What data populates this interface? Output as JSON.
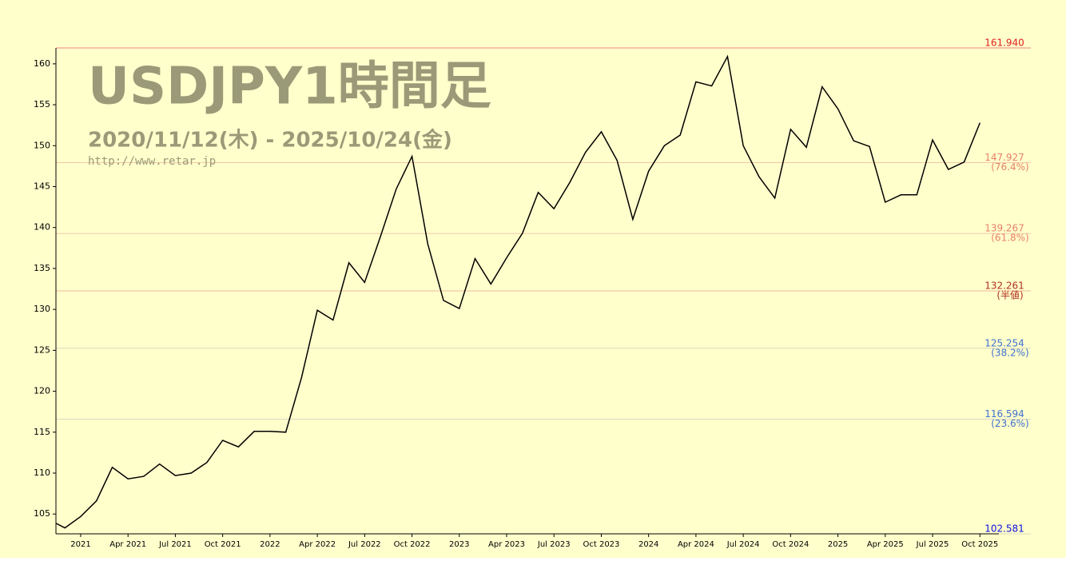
{
  "chart_data": {
    "type": "line",
    "title": "USDJPY1時間足",
    "subtitle": "2020/11/12(木) - 2025/10/24(金)",
    "source": "http://www.retar.jp",
    "color": "#000000",
    "background": "#ffffcc",
    "x": [
      "2020-11",
      "2020-12",
      "2021-01",
      "2021-02",
      "2021-03",
      "2021-04",
      "2021-05",
      "2021-06",
      "2021-07",
      "2021-08",
      "2021-09",
      "2021-10",
      "2021-11",
      "2021-12",
      "2022-01",
      "2022-02",
      "2022-03",
      "2022-04",
      "2022-05",
      "2022-06",
      "2022-07",
      "2022-08",
      "2022-09",
      "2022-10",
      "2022-11",
      "2022-12",
      "2023-01",
      "2023-02",
      "2023-03",
      "2023-04",
      "2023-05",
      "2023-06",
      "2023-07",
      "2023-08",
      "2023-09",
      "2023-10",
      "2023-11",
      "2023-12",
      "2024-01",
      "2024-02",
      "2024-03",
      "2024-04",
      "2024-05",
      "2024-06",
      "2024-07",
      "2024-08",
      "2024-09",
      "2024-10",
      "2024-11",
      "2024-12",
      "2025-01",
      "2025-02",
      "2025-03",
      "2025-04",
      "2025-05",
      "2025-06",
      "2025-07",
      "2025-08",
      "2025-09",
      "2025-10"
    ],
    "values": [
      104.3,
      103.3,
      104.7,
      106.6,
      110.7,
      109.3,
      109.6,
      111.1,
      109.7,
      110.0,
      111.3,
      114.0,
      113.2,
      115.1,
      115.1,
      115.0,
      121.7,
      129.9,
      128.7,
      135.7,
      133.3,
      138.9,
      144.7,
      148.7,
      138.0,
      131.1,
      130.1,
      136.2,
      133.1,
      136.3,
      139.3,
      144.3,
      142.3,
      145.5,
      149.2,
      151.7,
      148.2,
      141.0,
      146.9,
      150.0,
      151.3,
      157.8,
      157.3,
      160.9,
      150.0,
      146.2,
      143.6,
      152.0,
      149.8,
      157.2,
      154.5,
      150.6,
      149.9,
      143.1,
      144.0,
      144.0,
      150.7,
      147.1,
      148.0,
      152.8
    ],
    "xlim": [
      "2020-11",
      "2025-11"
    ],
    "xticks": [
      {
        "value": "2021-01",
        "label": "2021"
      },
      {
        "value": "2021-04",
        "label": "Apr 2021"
      },
      {
        "value": "2021-07",
        "label": "Jul 2021"
      },
      {
        "value": "2021-10",
        "label": "Oct 2021"
      },
      {
        "value": "2022-01",
        "label": "2022"
      },
      {
        "value": "2022-04",
        "label": "Apr 2022"
      },
      {
        "value": "2022-07",
        "label": "Jul 2022"
      },
      {
        "value": "2022-10",
        "label": "Oct 2022"
      },
      {
        "value": "2023-01",
        "label": "2023"
      },
      {
        "value": "2023-04",
        "label": "Apr 2023"
      },
      {
        "value": "2023-07",
        "label": "Jul 2023"
      },
      {
        "value": "2023-10",
        "label": "Oct 2023"
      },
      {
        "value": "2024-01",
        "label": "2024"
      },
      {
        "value": "2024-04",
        "label": "Apr 2024"
      },
      {
        "value": "2024-07",
        "label": "Jul 2024"
      },
      {
        "value": "2024-10",
        "label": "Oct 2024"
      },
      {
        "value": "2025-01",
        "label": "2025"
      },
      {
        "value": "2025-04",
        "label": "Apr 2025"
      },
      {
        "value": "2025-07",
        "label": "Jul 2025"
      },
      {
        "value": "2025-10",
        "label": "Oct 2025"
      }
    ],
    "ylim": [
      102.581,
      161.94
    ],
    "yticks": [
      105,
      110,
      115,
      120,
      125,
      130,
      135,
      140,
      145,
      150,
      155,
      160
    ],
    "levels": [
      {
        "value": 161.94,
        "label": "161.940",
        "color": "#e02020",
        "line_color": "#f08080"
      },
      {
        "value": 147.927,
        "label": "147.927",
        "ratio": "(76.4%)",
        "color": "#e8826a",
        "line_color": "#f4c8a8"
      },
      {
        "value": 139.267,
        "label": "139.267",
        "ratio": "(61.8%)",
        "color": "#e8826a",
        "line_color": "#f4c8a8"
      },
      {
        "value": 132.261,
        "label": "132.261",
        "ratio": "(半値)",
        "color": "#b03020",
        "line_color": "#f0b8a0"
      },
      {
        "value": 125.254,
        "label": "125.254",
        "ratio": "(38.2%)",
        "color": "#4070d0",
        "line_color": "#d8d8c0"
      },
      {
        "value": 116.594,
        "label": "116.594",
        "ratio": "(23.6%)",
        "color": "#4070d0",
        "line_color": "#d8d8c0"
      },
      {
        "value": 102.581,
        "label": "102.581",
        "color": "#1010e0",
        "line_color": "#d8d8c0"
      }
    ]
  }
}
